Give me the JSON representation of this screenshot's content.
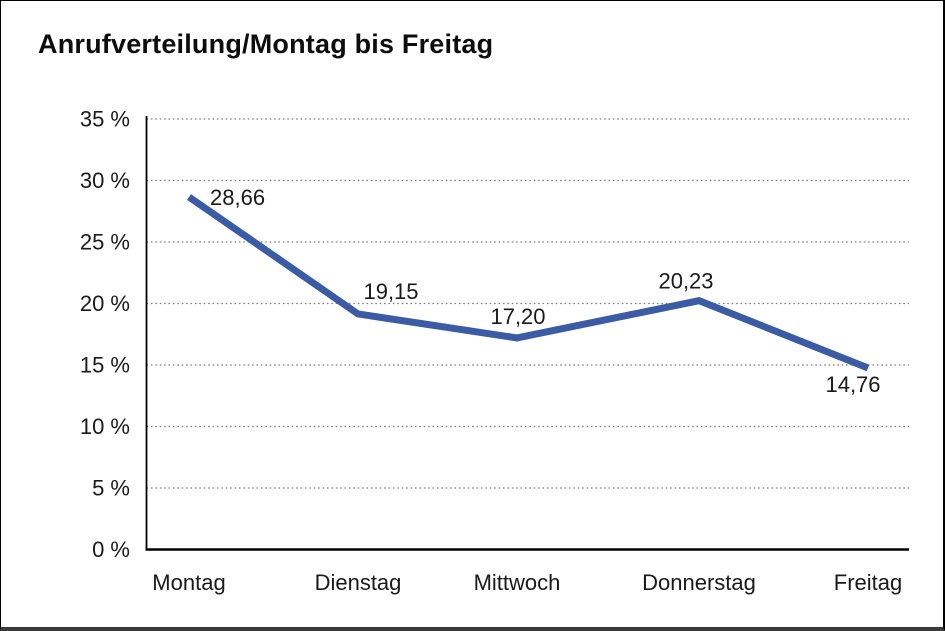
{
  "title": "Anrufverteilung/Montag bis Freitag",
  "chart_data": {
    "type": "line",
    "title": "Anrufverteilung/Montag bis Freitag",
    "categories": [
      "Montag",
      "Dienstag",
      "Mittwoch",
      "Donnerstag",
      "Freitag"
    ],
    "values": [
      28.66,
      19.15,
      17.2,
      20.23,
      14.76
    ],
    "value_labels": [
      "28,66",
      "19,15",
      "17,20",
      "20,23",
      "14,76"
    ],
    "xlabel": "",
    "ylabel": "",
    "ylim": [
      0,
      35
    ],
    "ytick_step": 5,
    "ytick_labels": [
      "0 %",
      "5 %",
      "10 %",
      "15 %",
      "20 %",
      "25 %",
      "30 %",
      "35 %"
    ],
    "grid": "horizontal-dotted",
    "legend": "none",
    "colors": {
      "line": "#3B5BA5",
      "grid": "#7d7d7d",
      "axis": "#000000",
      "text": "#1a1a1a"
    }
  }
}
